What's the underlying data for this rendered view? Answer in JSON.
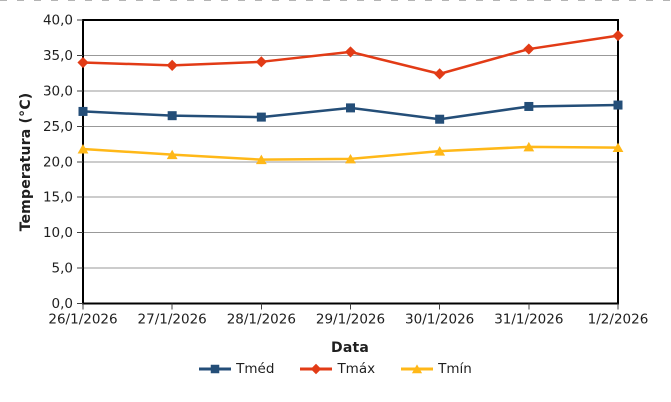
{
  "chart_data": {
    "type": "line",
    "title": "",
    "xlabel": "Data",
    "ylabel": "Temperatura (°C)",
    "categories": [
      "26/1/2026",
      "27/1/2026",
      "28/1/2026",
      "29/1/2026",
      "30/1/2026",
      "31/1/2026",
      "1/2/2026"
    ],
    "series": [
      {
        "name": "Tméd",
        "marker": "square",
        "color": "#244E78",
        "values": [
          27.1,
          26.5,
          26.3,
          27.6,
          26.0,
          27.8,
          28.0
        ]
      },
      {
        "name": "Tmáx",
        "marker": "diamond",
        "color": "#E23B16",
        "values": [
          34.0,
          33.6,
          34.1,
          35.5,
          32.4,
          35.9,
          37.8
        ]
      },
      {
        "name": "Tmín",
        "marker": "triangle",
        "color": "#FFB818",
        "values": [
          21.8,
          21.0,
          20.3,
          20.4,
          21.5,
          22.1,
          22.0
        ]
      }
    ],
    "ylim": [
      0,
      40
    ],
    "yticks": {
      "values": [
        0,
        5,
        10,
        15,
        20,
        25,
        30,
        35,
        40
      ],
      "labels": [
        "0,0",
        "5,0",
        "10,0",
        "15,0",
        "20,0",
        "25,0",
        "30,0",
        "35,0",
        "40,0"
      ]
    },
    "grid": "horizontal-only",
    "grid_color": "#999999",
    "axis_color": "#000000",
    "tick_color": "#404040",
    "legend_position": "bottom"
  }
}
